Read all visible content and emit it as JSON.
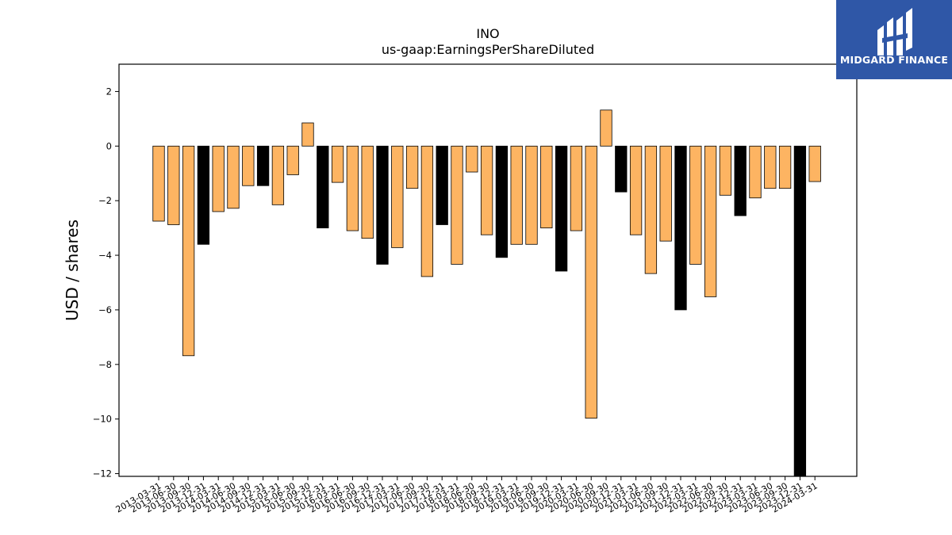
{
  "brand": {
    "name": "MIDGARD FINANCE",
    "bg_color": "#2f57a7"
  },
  "chart_data": {
    "type": "bar",
    "title": "INO",
    "subtitle": "us-gaap:EarningsPerShareDiluted",
    "ylabel": "USD / shares",
    "xlabel": "",
    "ylim": [
      -12.1,
      3.0
    ],
    "yticks": [
      2,
      0,
      -2,
      -4,
      -6,
      -8,
      -10,
      -12
    ],
    "grid": false,
    "legend": "none",
    "colors": {
      "quarter": "#fdb462",
      "fiscal_q4": "#000000",
      "edge": "#000000"
    },
    "categories": [
      "2013-03-31",
      "2013-06-30",
      "2013-09-30",
      "2013-12-31",
      "2014-03-31",
      "2014-06-30",
      "2014-09-30",
      "2014-12-31",
      "2015-03-31",
      "2015-06-30",
      "2015-09-30",
      "2015-12-31",
      "2016-03-31",
      "2016-06-30",
      "2016-09-30",
      "2016-12-31",
      "2017-03-31",
      "2017-06-30",
      "2017-09-30",
      "2017-12-31",
      "2018-03-31",
      "2018-06-30",
      "2018-09-30",
      "2018-12-31",
      "2019-03-31",
      "2019-06-30",
      "2019-09-30",
      "2019-12-31",
      "2020-03-31",
      "2020-06-30",
      "2020-09-30",
      "2020-12-31",
      "2021-03-31",
      "2021-06-30",
      "2021-09-30",
      "2021-12-31",
      "2022-03-31",
      "2022-06-30",
      "2022-09-30",
      "2022-12-31",
      "2023-03-31",
      "2023-06-30",
      "2023-09-30",
      "2023-12-31",
      "2024-03-31"
    ],
    "values": [
      -2.75,
      -2.88,
      -7.68,
      -3.6,
      -2.4,
      -2.28,
      -1.45,
      -1.45,
      -2.15,
      -1.05,
      0.85,
      -3.0,
      -1.33,
      -3.1,
      -3.38,
      -4.33,
      -3.72,
      -1.55,
      -4.78,
      -2.88,
      -4.33,
      -0.95,
      -3.25,
      -4.08,
      -3.6,
      -3.6,
      -3.0,
      -4.58,
      -3.1,
      -9.97,
      1.32,
      -1.68,
      -3.25,
      -4.67,
      -3.48,
      -6.0,
      -4.33,
      -5.52,
      -1.8,
      -2.55,
      -1.9,
      -1.55,
      -1.55,
      -12.1,
      -1.3
    ],
    "bar_colors": [
      "#fdb462",
      "#fdb462",
      "#fdb462",
      "#000000",
      "#fdb462",
      "#fdb462",
      "#fdb462",
      "#000000",
      "#fdb462",
      "#fdb462",
      "#fdb462",
      "#000000",
      "#fdb462",
      "#fdb462",
      "#fdb462",
      "#000000",
      "#fdb462",
      "#fdb462",
      "#fdb462",
      "#000000",
      "#fdb462",
      "#fdb462",
      "#fdb462",
      "#000000",
      "#fdb462",
      "#fdb462",
      "#fdb462",
      "#000000",
      "#fdb462",
      "#fdb462",
      "#fdb462",
      "#000000",
      "#fdb462",
      "#fdb462",
      "#fdb462",
      "#000000",
      "#fdb462",
      "#fdb462",
      "#fdb462",
      "#000000",
      "#fdb462",
      "#fdb462",
      "#fdb462",
      "#000000",
      "#fdb462"
    ]
  }
}
